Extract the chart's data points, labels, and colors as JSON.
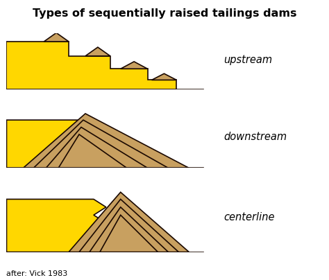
{
  "title": "Types of sequentially raised tailings dams",
  "title_fontsize": 11.5,
  "bg": "#ffffff",
  "yellow": "#FFD700",
  "tan": "#C8A060",
  "lc": "#1a0800",
  "lw": 1.2,
  "label_upstream": "upstream",
  "label_downstream": "downstream",
  "label_centerline": "centerline",
  "caption": "after: Vick 1983",
  "label_fontsize": 10.5,
  "caption_fontsize": 8
}
